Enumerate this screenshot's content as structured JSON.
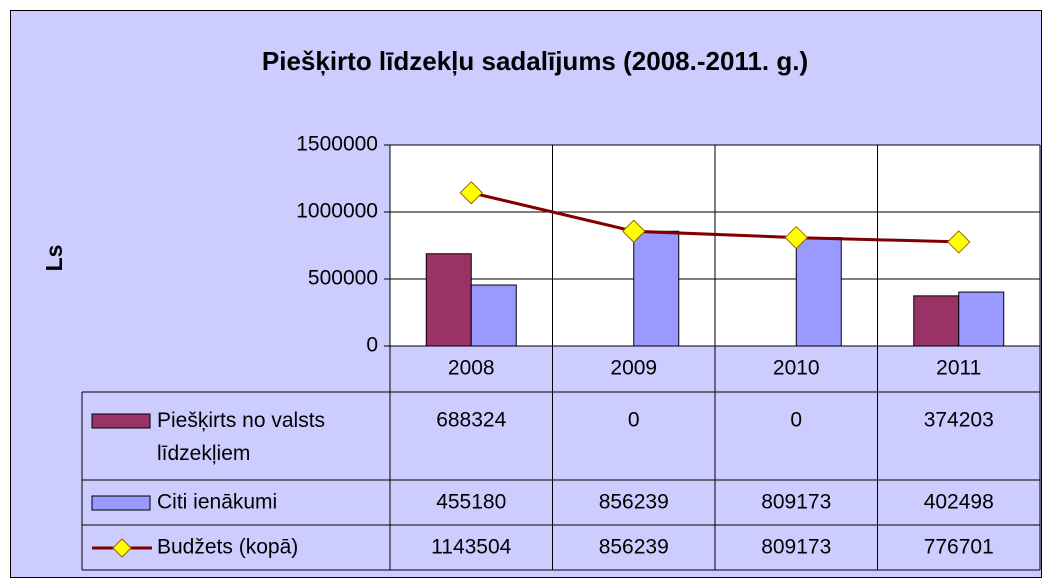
{
  "chart_data": {
    "type": "bar",
    "title": "Piešķirto līdzekļu sadalījums (2008.-2011. g.)",
    "y_label": "Ls",
    "categories": [
      "2008",
      "2009",
      "2010",
      "2011"
    ],
    "series": [
      {
        "name": "Piešķirts no valsts līdzekļiem",
        "color": "#993366",
        "type": "bar",
        "values": [
          688324,
          0,
          0,
          374203
        ]
      },
      {
        "name": "Citi ienākumi",
        "color": "#9999ff",
        "type": "bar",
        "values": [
          455180,
          856239,
          809173,
          402498
        ]
      },
      {
        "name": "Budžets (kopā)",
        "color": "#800000",
        "marker_color": "#ffff00",
        "type": "line",
        "values": [
          1143504,
          856239,
          809173,
          776701
        ]
      }
    ],
    "ylim": [
      0,
      1500000
    ],
    "yticks": [
      0,
      500000,
      1000000,
      1500000
    ],
    "grid": true,
    "data_table": true
  }
}
